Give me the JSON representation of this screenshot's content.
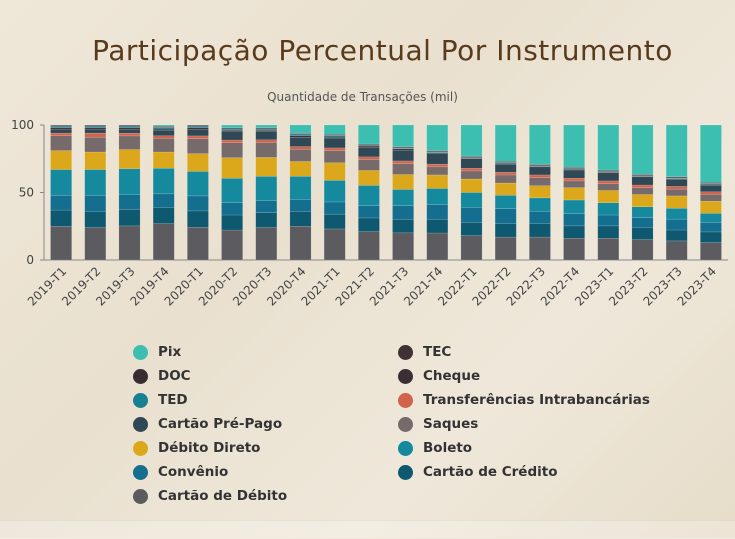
{
  "chart_data": {
    "type": "bar",
    "stacked": true,
    "title": "Participação Percentual Por Instrumento",
    "subtitle": "Quantidade de Transações (mil)",
    "ylim": [
      0,
      100
    ],
    "yticks": [
      0,
      50,
      100
    ],
    "categories": [
      "2019-T1",
      "2019-T2",
      "2019-T3",
      "2019-T4",
      "2020-T1",
      "2020-T2",
      "2020-T3",
      "2020-T4",
      "2021-T1",
      "2021-T2",
      "2021-T3",
      "2021-T4",
      "2022-T1",
      "2022-T2",
      "2022-T3",
      "2022-T4",
      "2023-T1",
      "2023-T2",
      "2023-T3",
      "2023-T4"
    ],
    "series": [
      {
        "name": "Cartão de Débito",
        "color": "#5b5b60",
        "values": [
          25,
          24,
          25,
          27,
          24,
          22,
          24,
          25,
          23,
          21,
          20,
          20,
          18,
          17,
          17,
          16,
          16,
          15,
          14,
          13
        ]
      },
      {
        "name": "Cartão de Crédito",
        "color": "#0e5870",
        "values": [
          12,
          12,
          12,
          12,
          12,
          11,
          11,
          11,
          11,
          10,
          10,
          10,
          10,
          10,
          10,
          9,
          9,
          9,
          8,
          8
        ]
      },
      {
        "name": "Convênio",
        "color": "#136e90",
        "values": [
          11,
          12,
          11,
          10,
          11,
          9,
          9,
          9,
          9,
          9,
          10,
          11,
          11,
          11,
          9,
          9,
          8,
          7,
          8,
          7
        ]
      },
      {
        "name": "Boleto",
        "color": "#15899e",
        "values": [
          19,
          19,
          19,
          19,
          18,
          18,
          18,
          17,
          16,
          15,
          12,
          12,
          11,
          10,
          10,
          10,
          9,
          8,
          8,
          7
        ]
      },
      {
        "name": "Débito Direto",
        "color": "#dba81c",
        "values": [
          14,
          13,
          14,
          12,
          13,
          15,
          14,
          11,
          13,
          11,
          11,
          10,
          10,
          9,
          9,
          9,
          9,
          9,
          9,
          9
        ]
      },
      {
        "name": "Saques",
        "color": "#776a6b",
        "values": [
          11,
          11,
          10,
          10,
          11,
          11,
          11,
          9,
          9,
          8,
          8,
          6,
          6,
          6,
          6,
          5,
          5,
          5,
          5,
          5
        ]
      },
      {
        "name": "Transferências Intrabancárias",
        "color": "#d2634b",
        "values": [
          2,
          3,
          2,
          2,
          2,
          2,
          2,
          2,
          2,
          2,
          2,
          2,
          2,
          2,
          2,
          2,
          2,
          2,
          2,
          2
        ]
      },
      {
        "name": "Cartão Pré-Pago",
        "color": "#2e4855",
        "values": [
          3,
          3,
          3,
          4,
          5,
          6,
          6,
          7,
          7,
          7,
          8,
          8,
          7,
          6,
          6,
          6,
          6,
          6,
          5,
          5
        ]
      },
      {
        "name": "Cheque",
        "color": "#3c2e35",
        "values": [
          1,
          1,
          1,
          1,
          1,
          1,
          1,
          1,
          1,
          1,
          1,
          0.5,
          0.5,
          0.5,
          0.5,
          0.5,
          0.5,
          0.5,
          0.5,
          0.5
        ]
      },
      {
        "name": "TED",
        "color": "#178091",
        "values": [
          1,
          1,
          1,
          1,
          1,
          1,
          1,
          1,
          1,
          0.5,
          0.5,
          0.5,
          0.5,
          0.5,
          0.5,
          0.5,
          0.5,
          0.5,
          0.5,
          0.5
        ]
      },
      {
        "name": "DOC",
        "color": "#3a2c33",
        "values": [
          0.5,
          0.5,
          0.5,
          0.5,
          0.5,
          0.5,
          0.5,
          0.5,
          0.5,
          0.5,
          0.5,
          0.5,
          0.5,
          0.5,
          0.5,
          0.5,
          0.5,
          0.5,
          0.5,
          0.5
        ]
      },
      {
        "name": "TEC",
        "color": "#3f3136",
        "values": [
          0.5,
          0.5,
          0.5,
          0.5,
          0.5,
          0.5,
          0.5,
          0.5,
          0.5,
          0.5,
          0.5,
          0.5,
          0.5,
          0.5,
          0.5,
          0.5,
          0.5,
          0.5,
          0.5,
          0.5
        ]
      },
      {
        "name": "Pix",
        "color": "#3cbfb1",
        "values": [
          0,
          0,
          0,
          1,
          0,
          2,
          2,
          6,
          7,
          14,
          16,
          19,
          23,
          27,
          29,
          31,
          33,
          36,
          38,
          43
        ]
      }
    ],
    "legend_order": [
      "Pix",
      "TEC",
      "DOC",
      "Cheque",
      "TED",
      "Transferências Intrabancárias",
      "Cartão Pré-Pago",
      "Saques",
      "Débito Direto",
      "Boleto",
      "Convênio",
      "Cartão de Crédito",
      "Cartão de Débito"
    ],
    "legend_placement": "bottom",
    "grid": false
  }
}
